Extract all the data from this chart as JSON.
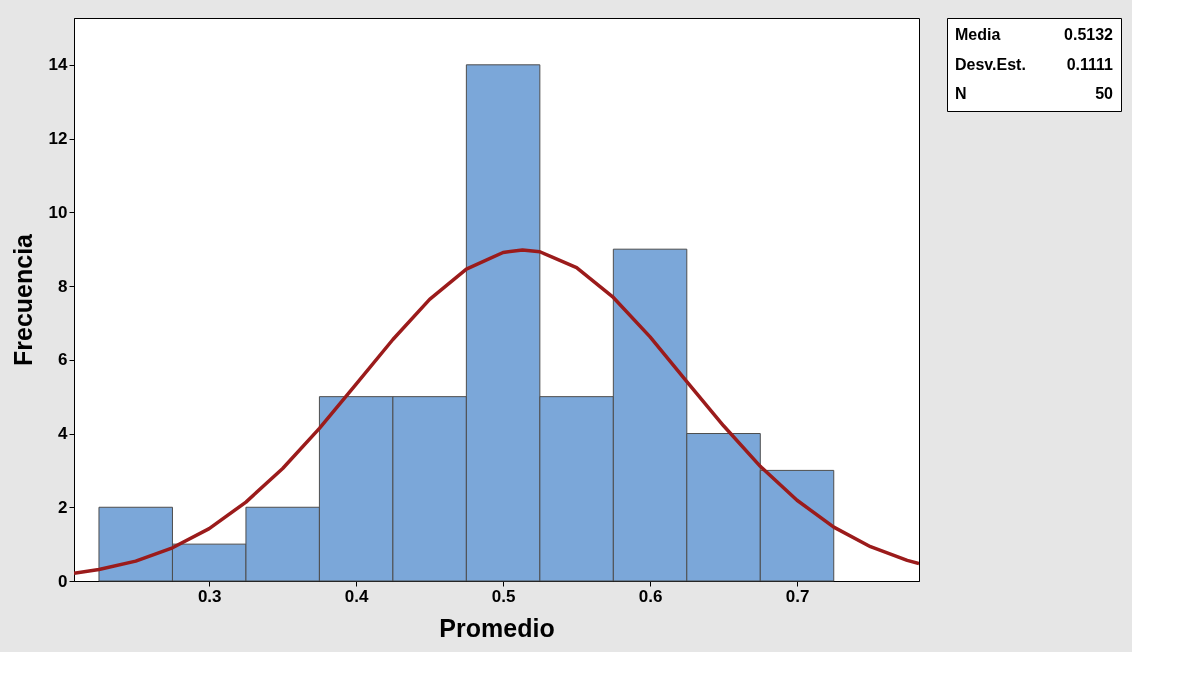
{
  "chart_data": {
    "type": "histogram",
    "xlabel": "Promedio",
    "ylabel": "Frecuencia",
    "bins": [
      0.225,
      0.275,
      0.325,
      0.375,
      0.425,
      0.475,
      0.525,
      0.575,
      0.625,
      0.675,
      0.725
    ],
    "series": [
      {
        "color": "#7ba7d9",
        "values": [
          2,
          1,
          2,
          5,
          5,
          14,
          5,
          9,
          4,
          3
        ]
      },
      {
        "type": "line",
        "color": "#9b1b1b",
        "x": [
          0.208,
          0.225,
          0.25,
          0.275,
          0.3,
          0.325,
          0.35,
          0.375,
          0.4,
          0.425,
          0.45,
          0.475,
          0.5,
          0.5132,
          0.525,
          0.55,
          0.575,
          0.6,
          0.625,
          0.65,
          0.675,
          0.7,
          0.725,
          0.75,
          0.775,
          0.783
        ],
        "values": [
          0.21,
          0.31,
          0.54,
          0.9,
          1.42,
          2.14,
          3.05,
          4.14,
          5.34,
          6.55,
          7.64,
          8.46,
          8.91,
          8.98,
          8.93,
          8.5,
          7.69,
          6.62,
          5.41,
          4.21,
          3.11,
          2.19,
          1.46,
          0.93,
          0.56,
          0.47
        ]
      }
    ],
    "xlim": [
      0.208,
      0.783
    ],
    "xticks": [
      0.3,
      0.4,
      0.5,
      0.6,
      0.7
    ],
    "ylim": [
      0,
      15.27
    ],
    "yticks": [
      0,
      2,
      4,
      6,
      8,
      10,
      12,
      14
    ],
    "grid": false,
    "annotations": [
      "Media 0.5132",
      "Desv.Est. 0.1111",
      "N 50"
    ]
  }
}
